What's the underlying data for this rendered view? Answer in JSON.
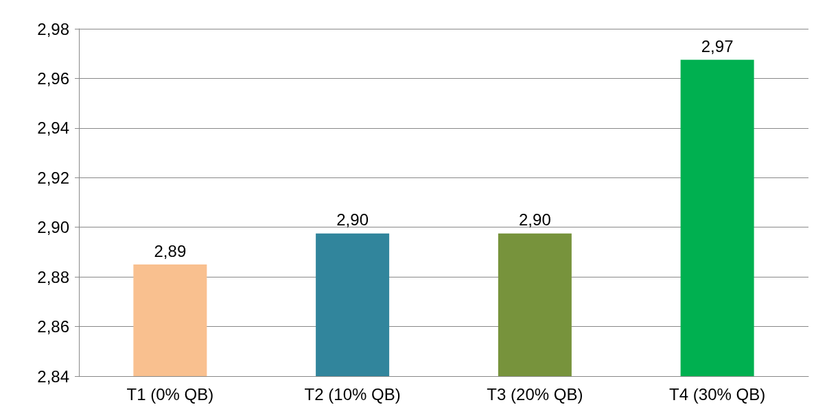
{
  "chart_data": {
    "type": "bar",
    "categories": [
      "T1 (0% QB)",
      "T2 (10% QB)",
      "T3 (20% QB)",
      "T4 (30% QB)"
    ],
    "values": [
      2.885,
      2.8975,
      2.8975,
      2.9675
    ],
    "colors": [
      "#f9c08f",
      "#31859c",
      "#77933c",
      "#00b050"
    ],
    "value_labels": [
      "2,89",
      "2,90",
      "2,90",
      "2,97"
    ],
    "ylim": [
      2.84,
      2.98
    ],
    "yticks": [
      {
        "value": 2.84,
        "label": "2,84"
      },
      {
        "value": 2.86,
        "label": "2,86"
      },
      {
        "value": 2.88,
        "label": "2,88"
      },
      {
        "value": 2.9,
        "label": "2,90"
      },
      {
        "value": 2.92,
        "label": "2,92"
      },
      {
        "value": 2.94,
        "label": "2,94"
      },
      {
        "value": 2.96,
        "label": "2,96"
      },
      {
        "value": 2.98,
        "label": "2,98"
      }
    ],
    "grid": "y"
  }
}
